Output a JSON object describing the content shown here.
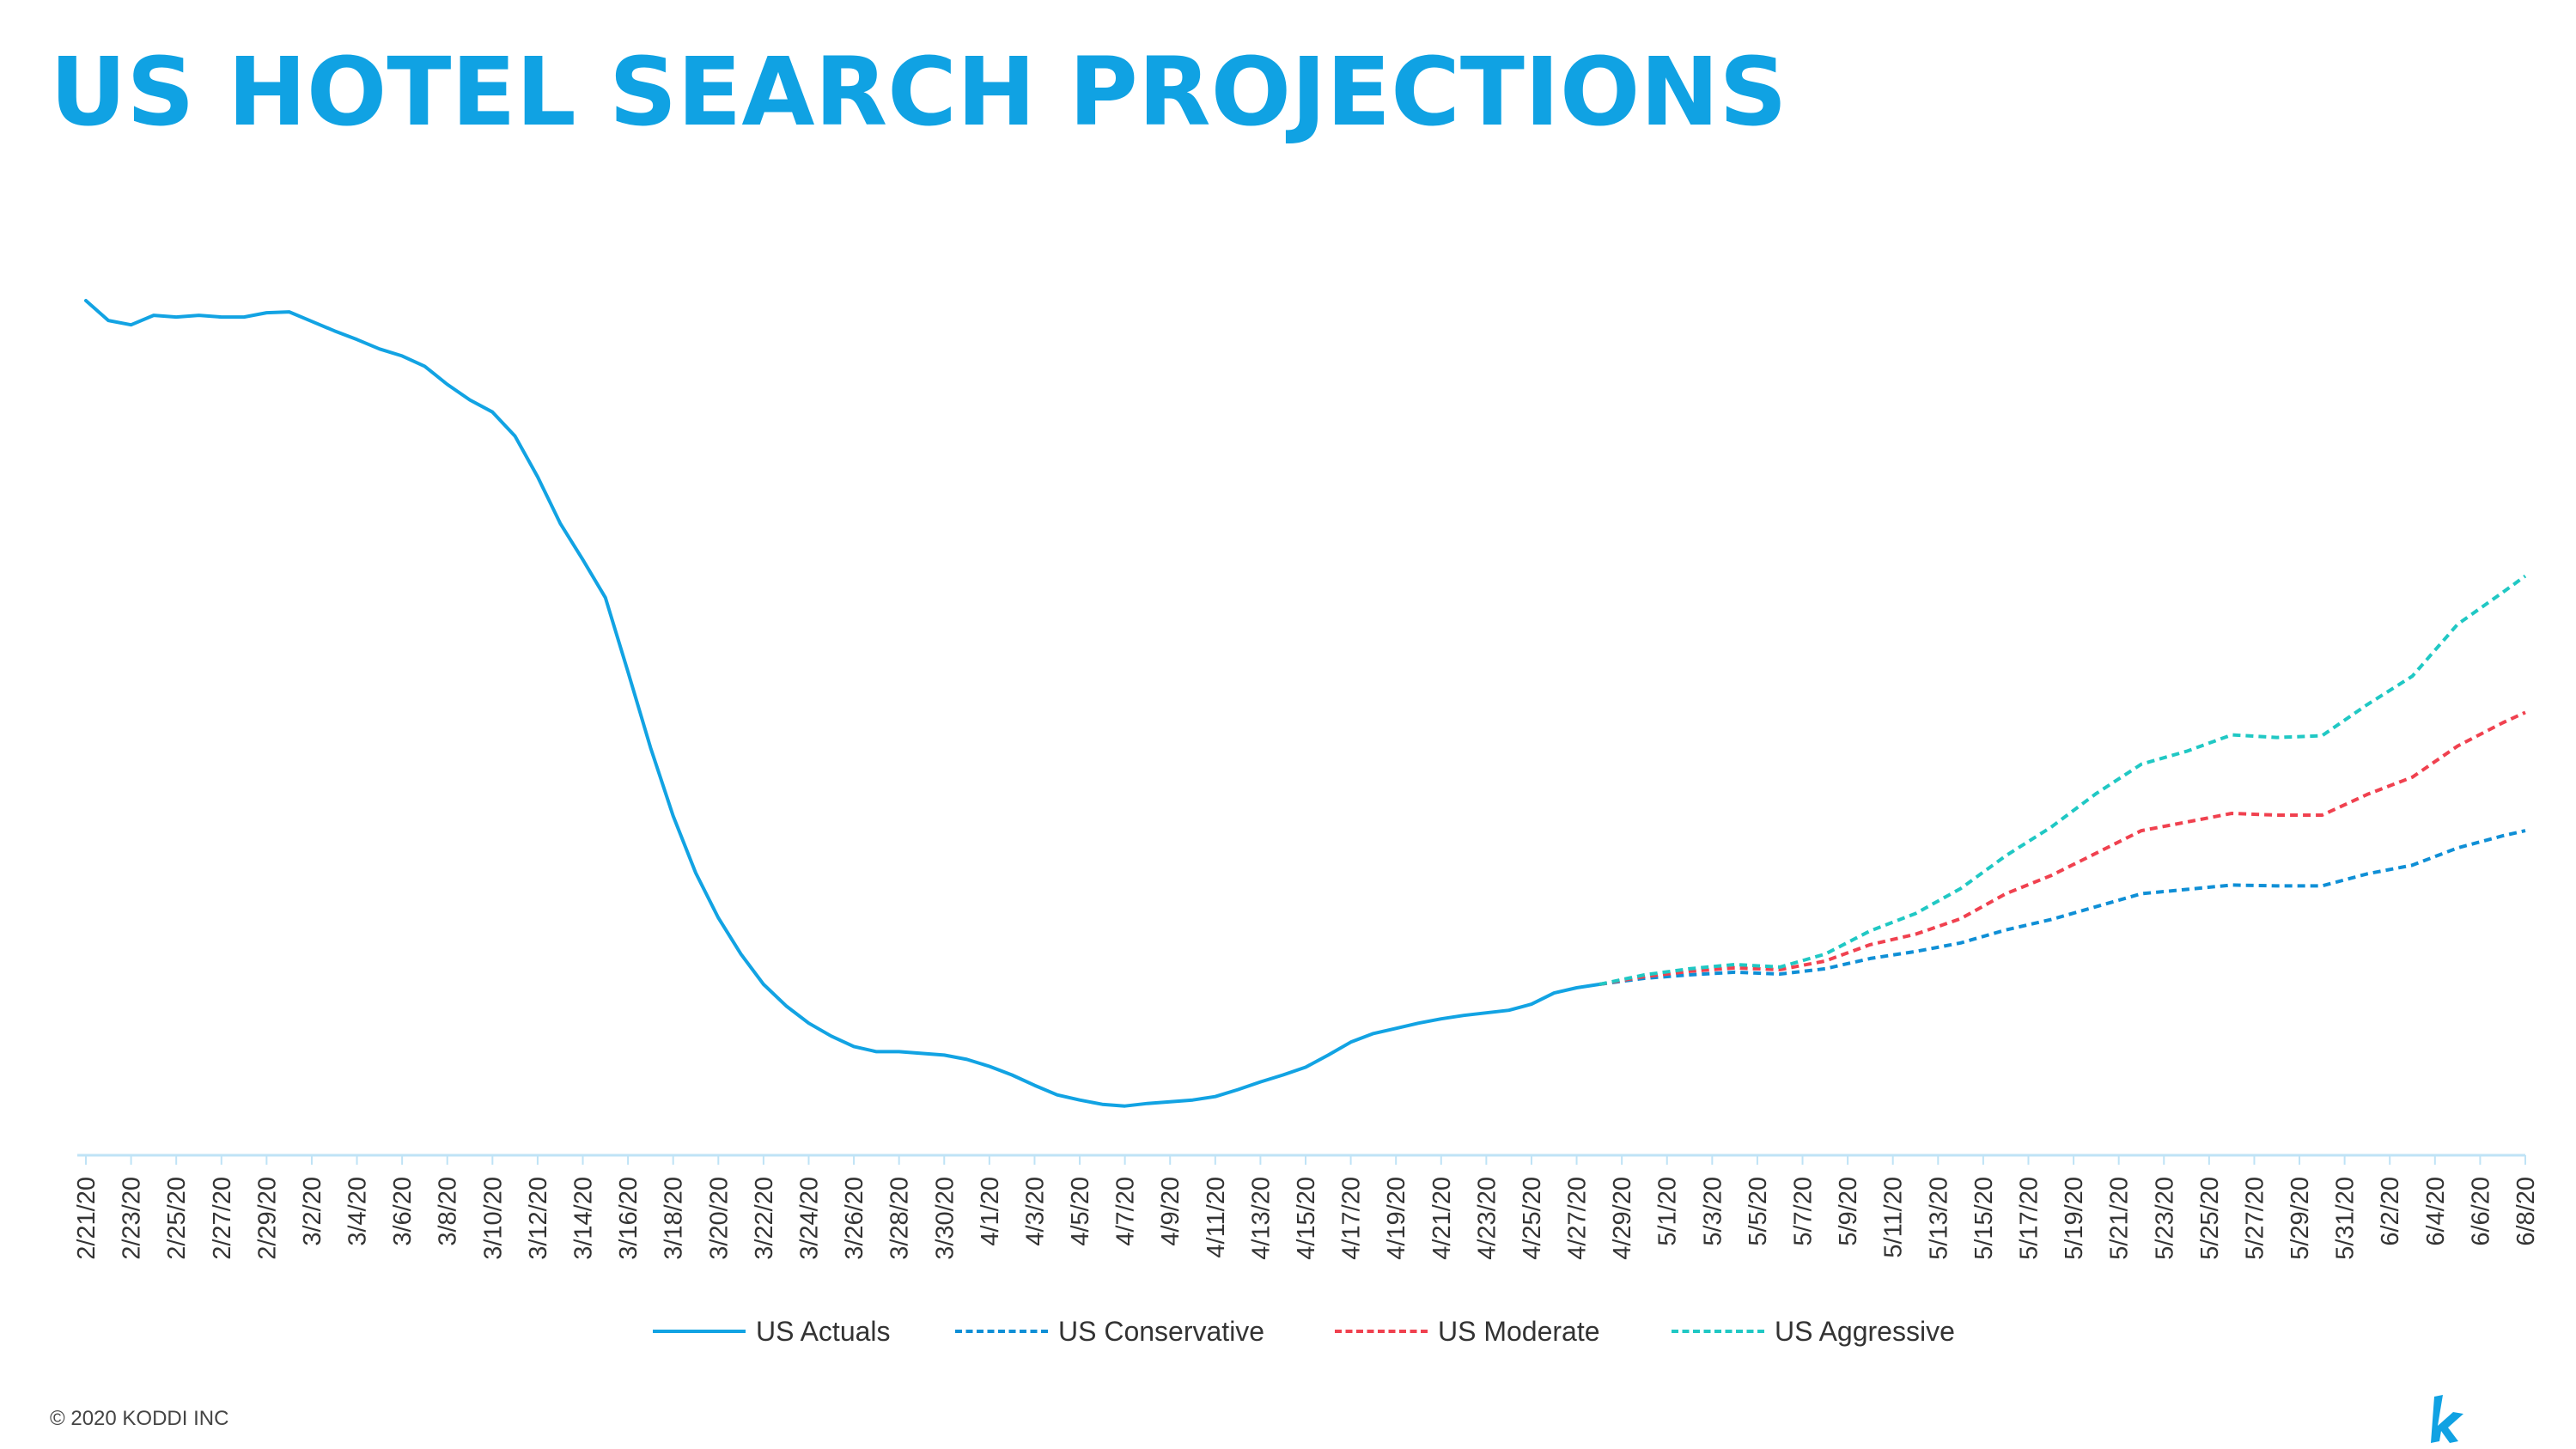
{
  "title": "US HOTEL SEARCH PROJECTIONS",
  "footer": "© 2020 KODDI INC",
  "brand": {
    "logo_icon": "koddi-k-logo-icon"
  },
  "colors": {
    "title": "#10a2e3",
    "axis": "#bfe3f6",
    "actuals": "#12a3e3",
    "conservative": "#0f8fd6",
    "moderate": "#f0414f",
    "aggressive": "#20c8c4"
  },
  "chart_data": {
    "type": "line",
    "title": "US HOTEL SEARCH PROJECTIONS",
    "xlabel": "",
    "ylabel": "",
    "grid": false,
    "y_axis_labels": false,
    "legend_position": "bottom",
    "x_start": "2/21/20",
    "x_end": "6/8/20",
    "x_tick_labels": [
      "2/21/20",
      "2/23/20",
      "2/25/20",
      "2/27/20",
      "2/29/20",
      "3/2/20",
      "3/4/20",
      "3/6/20",
      "3/8/20",
      "3/10/20",
      "3/12/20",
      "3/14/20",
      "3/16/20",
      "3/18/20",
      "3/20/20",
      "3/22/20",
      "3/24/20",
      "3/26/20",
      "3/28/20",
      "3/30/20",
      "4/1/20",
      "4/3/20",
      "4/5/20",
      "4/7/20",
      "4/9/20",
      "4/11/20",
      "4/13/20",
      "4/15/20",
      "4/17/20",
      "4/19/20",
      "4/21/20",
      "4/23/20",
      "4/25/20",
      "4/27/20",
      "4/29/20",
      "5/1/20",
      "5/3/20",
      "5/5/20",
      "5/7/20",
      "5/9/20",
      "5/11/20",
      "5/13/20",
      "5/15/20",
      "5/17/20",
      "5/19/20",
      "5/21/20",
      "5/23/20",
      "5/25/20",
      "5/27/20",
      "5/29/20",
      "5/31/20",
      "6/2/20",
      "6/4/20",
      "6/6/20",
      "6/8/20"
    ],
    "ylim": [
      0,
      100
    ],
    "series": [
      {
        "name": "US Actuals",
        "style": "solid",
        "color": "#12a3e3",
        "x": [
          "2/21/20",
          "2/22/20",
          "2/23/20",
          "2/24/20",
          "2/25/20",
          "2/26/20",
          "2/27/20",
          "2/28/20",
          "2/29/20",
          "3/1/20",
          "3/2/20",
          "3/3/20",
          "3/4/20",
          "3/5/20",
          "3/6/20",
          "3/7/20",
          "3/8/20",
          "3/9/20",
          "3/10/20",
          "3/11/20",
          "3/12/20",
          "3/13/20",
          "3/14/20",
          "3/15/20",
          "3/16/20",
          "3/17/20",
          "3/18/20",
          "3/19/20",
          "3/20/20",
          "3/21/20",
          "3/22/20",
          "3/23/20",
          "3/24/20",
          "3/25/20",
          "3/26/20",
          "3/27/20",
          "3/28/20",
          "3/29/20",
          "3/30/20",
          "3/31/20",
          "4/1/20",
          "4/2/20",
          "4/3/20",
          "4/4/20",
          "4/5/20",
          "4/6/20",
          "4/7/20",
          "4/8/20",
          "4/9/20",
          "4/10/20",
          "4/11/20",
          "4/12/20",
          "4/13/20",
          "4/14/20",
          "4/15/20",
          "4/16/20",
          "4/17/20",
          "4/18/20",
          "4/19/20",
          "4/20/20",
          "4/21/20",
          "4/22/20",
          "4/23/20",
          "4/24/20",
          "4/25/20",
          "4/26/20",
          "4/27/20",
          "4/28/20"
        ],
        "values": [
          99.0,
          96.7,
          96.2,
          97.3,
          97.1,
          97.3,
          97.1,
          97.1,
          97.6,
          97.7,
          96.6,
          95.5,
          94.5,
          93.4,
          92.6,
          91.4,
          89.3,
          87.5,
          86.1,
          83.3,
          78.6,
          73.2,
          69.0,
          64.6,
          56.0,
          47.2,
          39.3,
          32.7,
          27.5,
          23.3,
          19.8,
          17.3,
          15.3,
          13.8,
          12.6,
          12.0,
          12.0,
          11.8,
          11.6,
          11.1,
          10.3,
          9.3,
          8.1,
          7.0,
          6.4,
          5.9,
          5.7,
          6.0,
          6.2,
          6.4,
          6.8,
          7.6,
          8.5,
          9.3,
          10.2,
          11.6,
          13.1,
          14.1,
          14.7,
          15.3,
          15.8,
          16.2,
          16.5,
          16.8,
          17.5,
          18.8,
          19.4,
          19.8
        ]
      },
      {
        "name": "US Conservative",
        "style": "dashed",
        "color": "#0f8fd6",
        "x": [
          "4/28/20",
          "4/30/20",
          "5/2/20",
          "5/4/20",
          "5/6/20",
          "5/8/20",
          "5/10/20",
          "5/12/20",
          "5/14/20",
          "5/16/20",
          "5/18/20",
          "5/20/20",
          "5/22/20",
          "5/24/20",
          "5/26/20",
          "5/28/20",
          "5/30/20",
          "6/1/20",
          "6/3/20",
          "6/5/20",
          "6/7/20",
          "6/8/20"
        ],
        "values": [
          19.8,
          20.5,
          20.9,
          21.2,
          21.0,
          21.6,
          22.8,
          23.6,
          24.6,
          26.1,
          27.3,
          28.8,
          30.3,
          30.8,
          31.3,
          31.2,
          31.2,
          32.6,
          33.6,
          35.6,
          37.0,
          37.6
        ]
      },
      {
        "name": "US Moderate",
        "style": "dashed",
        "color": "#f0414f",
        "x": [
          "4/28/20",
          "4/30/20",
          "5/2/20",
          "5/4/20",
          "5/6/20",
          "5/8/20",
          "5/10/20",
          "5/12/20",
          "5/14/20",
          "5/16/20",
          "5/18/20",
          "5/20/20",
          "5/22/20",
          "5/24/20",
          "5/26/20",
          "5/28/20",
          "5/30/20",
          "6/1/20",
          "6/3/20",
          "6/5/20",
          "6/7/20",
          "6/8/20"
        ],
        "values": [
          19.8,
          20.7,
          21.3,
          21.7,
          21.5,
          22.5,
          24.4,
          25.6,
          27.4,
          30.3,
          32.4,
          35.0,
          37.6,
          38.6,
          39.6,
          39.4,
          39.4,
          41.8,
          43.8,
          47.4,
          50.1,
          51.3
        ]
      },
      {
        "name": "US Aggressive",
        "style": "dashed",
        "color": "#20c8c4",
        "x": [
          "4/28/20",
          "4/30/20",
          "5/2/20",
          "5/4/20",
          "5/6/20",
          "5/8/20",
          "5/10/20",
          "5/12/20",
          "5/14/20",
          "5/16/20",
          "5/18/20",
          "5/20/20",
          "5/22/20",
          "5/24/20",
          "5/26/20",
          "5/28/20",
          "5/30/20",
          "6/1/20",
          "6/3/20",
          "6/5/20",
          "6/7/20",
          "6/8/20"
        ],
        "values": [
          19.8,
          20.9,
          21.6,
          22.1,
          21.8,
          23.3,
          26.0,
          28.0,
          30.9,
          34.7,
          38.0,
          41.9,
          45.3,
          46.8,
          48.7,
          48.4,
          48.6,
          52.2,
          55.5,
          61.5,
          65.2,
          67.1
        ]
      }
    ]
  }
}
